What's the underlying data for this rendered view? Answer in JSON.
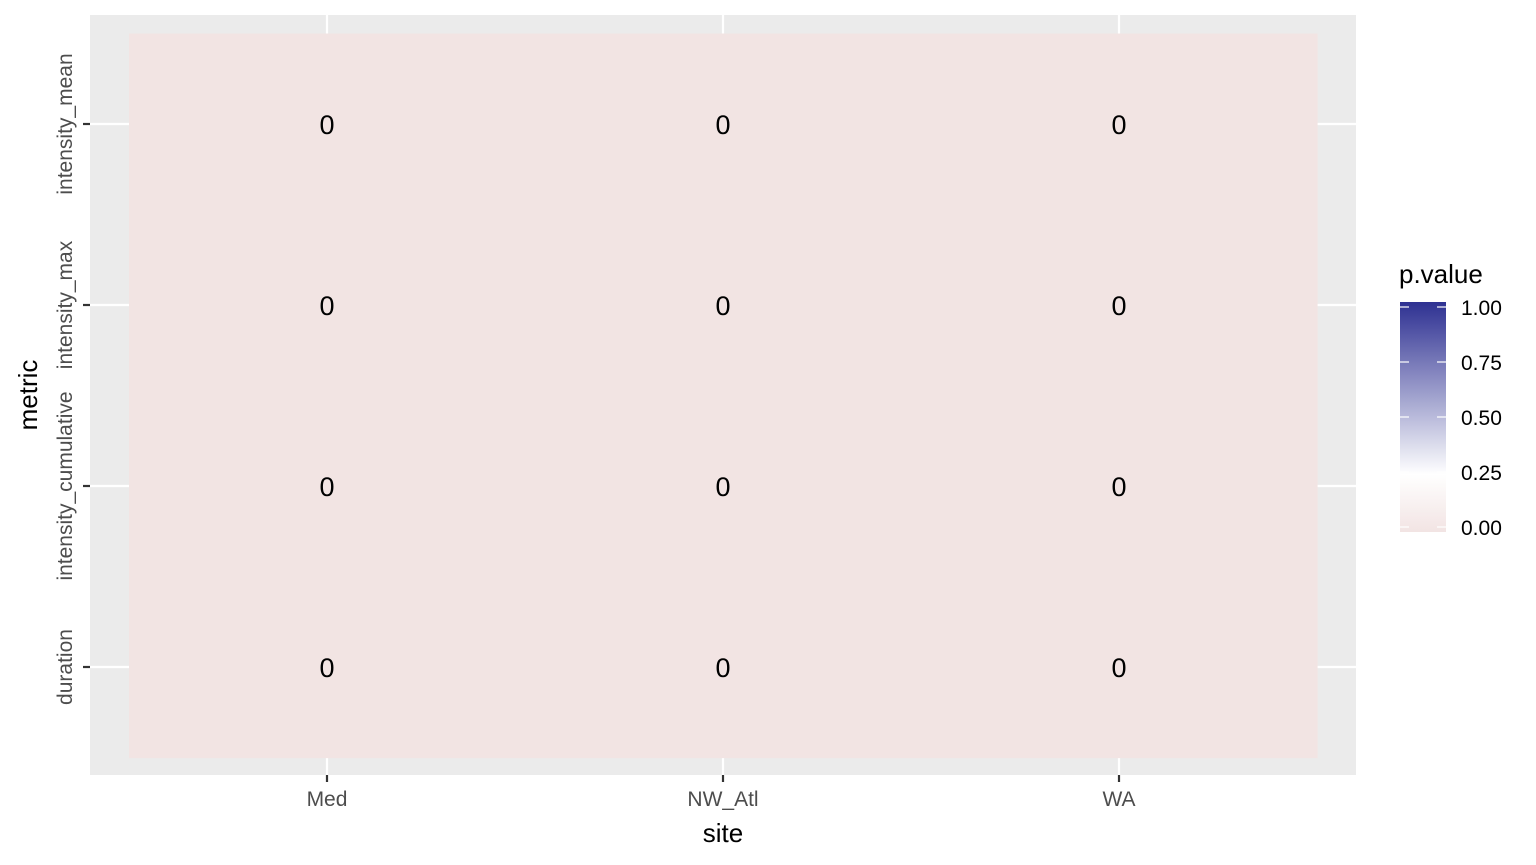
{
  "chart_data": {
    "type": "heatmap",
    "title": "",
    "xlabel": "site",
    "ylabel": "metric",
    "x_categories": [
      "Med",
      "NW_Atl",
      "WA"
    ],
    "y_categories": [
      "duration",
      "intensity_cumulative",
      "intensity_max",
      "intensity_mean"
    ],
    "cells": [
      {
        "x": "Med",
        "y": "duration",
        "value": 0,
        "label": "0"
      },
      {
        "x": "NW_Atl",
        "y": "duration",
        "value": 0,
        "label": "0"
      },
      {
        "x": "WA",
        "y": "duration",
        "value": 0,
        "label": "0"
      },
      {
        "x": "Med",
        "y": "intensity_cumulative",
        "value": 0,
        "label": "0"
      },
      {
        "x": "NW_Atl",
        "y": "intensity_cumulative",
        "value": 0,
        "label": "0"
      },
      {
        "x": "WA",
        "y": "intensity_cumulative",
        "value": 0,
        "label": "0"
      },
      {
        "x": "Med",
        "y": "intensity_max",
        "value": 0,
        "label": "0"
      },
      {
        "x": "NW_Atl",
        "y": "intensity_max",
        "value": 0,
        "label": "0"
      },
      {
        "x": "WA",
        "y": "intensity_max",
        "value": 0,
        "label": "0"
      },
      {
        "x": "Med",
        "y": "intensity_mean",
        "value": 0,
        "label": "0"
      },
      {
        "x": "NW_Atl",
        "y": "intensity_mean",
        "value": 0,
        "label": "0"
      },
      {
        "x": "WA",
        "y": "intensity_mean",
        "value": 0,
        "label": "0"
      }
    ],
    "legend": {
      "title": "p.value",
      "position": "right",
      "range": [
        0,
        1
      ],
      "ticks": [
        "0.00",
        "0.25",
        "0.50",
        "0.75",
        "1.00"
      ],
      "tick_values": [
        0,
        0.25,
        0.5,
        0.75,
        1
      ],
      "colors": {
        "low": "#f2e4e3",
        "mid": "#ffffff",
        "high": "#2e3192"
      },
      "midpoint": 0.25
    },
    "grid": true,
    "panel_background": "#ebebeb",
    "gridline_color": "#ffffff"
  }
}
